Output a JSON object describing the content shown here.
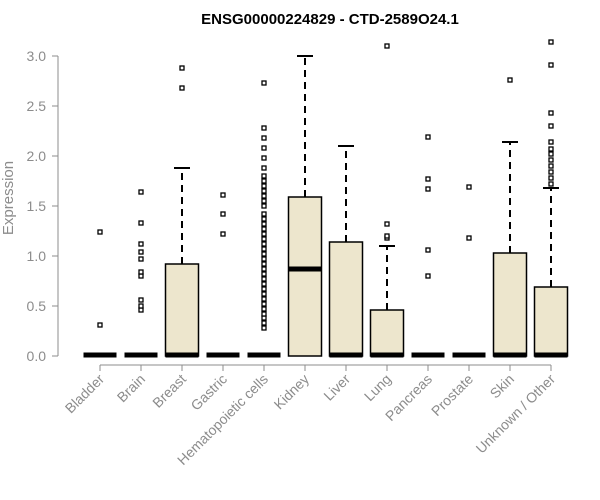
{
  "chart_data": {
    "type": "box",
    "title": "ENSG00000224829 - CTD-2589O24.1",
    "xlabel": "",
    "ylabel": "Expression",
    "ylim": [
      0,
      3.0
    ],
    "yticks": [
      0.0,
      0.5,
      1.0,
      1.5,
      2.0,
      2.5,
      3.0
    ],
    "ytick_labels": [
      "0.0",
      "0.5",
      "1.0",
      "1.5",
      "2.0",
      "2.5",
      "3.0"
    ],
    "box_fill": "#ede6cd",
    "line_color": "#000000",
    "axis_color": "#8c8c8c",
    "categories": [
      "Bladder",
      "Brain",
      "Breast",
      "Gastric",
      "Hematopoietic cells",
      "Kidney",
      "Liver",
      "Lung",
      "Pancreas",
      "Prostate",
      "Skin",
      "Unknown / Other"
    ],
    "boxes": [
      {
        "q1": 0,
        "median": 0,
        "q3": 0,
        "whisker_low": 0,
        "whisker_high": 0,
        "outliers": [
          0.31,
          1.24
        ]
      },
      {
        "q1": 0,
        "median": 0,
        "q3": 0,
        "whisker_low": 0,
        "whisker_high": 0,
        "outliers": [
          0.46,
          0.5,
          0.56,
          0.8,
          0.84,
          0.97,
          1.04,
          1.12,
          1.33,
          1.64
        ]
      },
      {
        "q1": 0,
        "median": 0,
        "q3": 0.92,
        "whisker_low": 0,
        "whisker_high": 1.88,
        "outliers": [
          2.68,
          2.88
        ]
      },
      {
        "q1": 0,
        "median": 0,
        "q3": 0,
        "whisker_low": 0,
        "whisker_high": 0,
        "outliers": [
          1.22,
          1.42,
          1.61
        ]
      },
      {
        "q1": 0,
        "median": 0,
        "q3": 0,
        "whisker_low": 0,
        "whisker_high": 0,
        "outliers": [
          0.28,
          0.33,
          0.38,
          0.42,
          0.47,
          0.52,
          0.57,
          0.62,
          0.67,
          0.72,
          0.77,
          0.82,
          0.87,
          0.92,
          0.97,
          1.02,
          1.07,
          1.12,
          1.17,
          1.22,
          1.27,
          1.32,
          1.37,
          1.42,
          1.5,
          1.55,
          1.6,
          1.65,
          1.7,
          1.75,
          1.8,
          1.88,
          1.98,
          2.08,
          2.18,
          2.28,
          2.73
        ]
      },
      {
        "q1": 0,
        "median": 0.86,
        "q3": 1.59,
        "whisker_low": 0,
        "whisker_high": 3.0,
        "outliers": []
      },
      {
        "q1": 0,
        "median": 0,
        "q3": 1.14,
        "whisker_low": 0,
        "whisker_high": 2.1,
        "outliers": []
      },
      {
        "q1": 0,
        "median": 0,
        "q3": 0.46,
        "whisker_low": 0,
        "whisker_high": 1.1,
        "outliers": [
          1.18,
          1.2,
          1.32,
          3.1
        ]
      },
      {
        "q1": 0,
        "median": 0,
        "q3": 0,
        "whisker_low": 0,
        "whisker_high": 0,
        "outliers": [
          0.8,
          1.06,
          1.67,
          1.77,
          2.19
        ]
      },
      {
        "q1": 0,
        "median": 0,
        "q3": 0,
        "whisker_low": 0,
        "whisker_high": 0,
        "outliers": [
          1.18,
          1.69
        ]
      },
      {
        "q1": 0,
        "median": 0,
        "q3": 1.03,
        "whisker_low": 0,
        "whisker_high": 2.14,
        "outliers": [
          2.76
        ]
      },
      {
        "q1": 0,
        "median": 0,
        "q3": 0.69,
        "whisker_low": 0,
        "whisker_high": 1.68,
        "outliers": [
          1.72,
          1.78,
          1.84,
          1.9,
          1.96,
          2.02,
          2.07,
          2.14,
          2.3,
          2.43,
          2.91,
          3.14
        ]
      }
    ]
  }
}
